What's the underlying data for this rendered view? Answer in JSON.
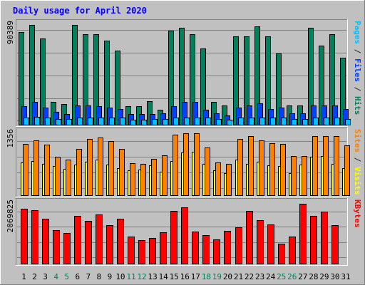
{
  "chart_data": {
    "type": "bar",
    "title": "Daily usage for April 2020",
    "categories": [
      "1",
      "2",
      "3",
      "4",
      "5",
      "6",
      "7",
      "8",
      "9",
      "10",
      "11",
      "12",
      "13",
      "14",
      "15",
      "16",
      "17",
      "18",
      "19",
      "20",
      "21",
      "22",
      "23",
      "24",
      "25",
      "26",
      "27",
      "28",
      "29",
      "30",
      "31"
    ],
    "weekend_days": [
      "4",
      "5",
      "11",
      "12",
      "18",
      "19",
      "25",
      "26"
    ],
    "panels": [
      {
        "id": "hits",
        "ylabel_max": "90389",
        "ylim": [
          0,
          90389
        ],
        "right_label": [
          {
            "text": "Pages",
            "color": "#00c0ff"
          },
          {
            "text": " / ",
            "color": "#303030"
          },
          {
            "text": "Files",
            "color": "#0040ff"
          },
          {
            "text": " / ",
            "color": "#303030"
          },
          {
            "text": "Hits",
            "color": "#00805c"
          }
        ],
        "series": [
          {
            "name": "Hits",
            "color": "#00805c",
            "values": [
              84000,
              90389,
              78000,
              21000,
              19000,
              90389,
              82000,
              82000,
              76000,
              67000,
              17000,
              17000,
              22000,
              14000,
              85000,
              88000,
              82000,
              69000,
              21000,
              18000,
              80000,
              80000,
              89000,
              80000,
              65000,
              18000,
              18000,
              88000,
              72000,
              82000,
              61000
            ]
          },
          {
            "name": "Files",
            "color": "#0040ff",
            "values": [
              17000,
              21000,
              16000,
              12000,
              10000,
              18000,
              18000,
              17000,
              16000,
              15000,
              10000,
              10000,
              10000,
              11000,
              17000,
              21000,
              21000,
              14000,
              11000,
              9000,
              16000,
              18000,
              20000,
              15000,
              16000,
              11000,
              11000,
              18000,
              18000,
              18000,
              15000
            ]
          },
          {
            "name": "Pages",
            "color": "#00c0ff",
            "values": [
              7000,
              8000,
              7000,
              6000,
              6000,
              7000,
              7000,
              7000,
              7000,
              7000,
              5000,
              5000,
              6000,
              6000,
              7000,
              7000,
              7000,
              7000,
              6000,
              5000,
              7000,
              7000,
              7000,
              7000,
              7000,
              6000,
              6000,
              7000,
              7000,
              7000,
              6000
            ]
          }
        ]
      },
      {
        "id": "visits",
        "ylabel_max": "1356",
        "ylim": [
          0,
          1356
        ],
        "right_label": [
          {
            "text": "Sites",
            "color": "#ff8000"
          },
          {
            "text": " / ",
            "color": "#303030"
          },
          {
            "text": "Visits",
            "color": "#ffff00"
          }
        ],
        "series": [
          {
            "name": "Visits",
            "color": "#ffff00",
            "values": [
              720,
              760,
              700,
              640,
              580,
              680,
              740,
              780,
              680,
              600,
              560,
              570,
              660,
              520,
              750,
              940,
              950,
              700,
              560,
              500,
              780,
              700,
              740,
              660,
              640,
              500,
              680,
              840,
              870,
              700,
              600
            ]
          },
          {
            "name": "Sites",
            "color": "#ff8000",
            "values": [
              1120,
              1200,
              1110,
              850,
              790,
              1020,
              1230,
              1260,
              1190,
              1020,
              710,
              700,
              800,
              880,
              1320,
              1356,
              1356,
              1050,
              720,
              700,
              1240,
              1300,
              1200,
              1140,
              1120,
              860,
              860,
              1300,
              1300,
              1300,
              1100
            ]
          }
        ]
      },
      {
        "id": "kbytes",
        "ylabel_max": "2069825",
        "ylim": [
          0,
          2069825
        ],
        "right_label": [
          {
            "text": "KBytes",
            "color": "#ff0000"
          }
        ],
        "series": [
          {
            "name": "KBytes",
            "color": "#ff0000",
            "values": [
              1900000,
              1850000,
              1560000,
              1180000,
              1060000,
              1650000,
              1480000,
              1710000,
              1350000,
              1560000,
              950000,
              840000,
              900000,
              1100000,
              1820000,
              1940000,
              1120000,
              1010000,
              850000,
              1150000,
              1260000,
              1830000,
              1510000,
              1360000,
              700000,
              960000,
              2069825,
              1660000,
              1810000,
              1350000,
              0
            ]
          }
        ]
      }
    ]
  }
}
